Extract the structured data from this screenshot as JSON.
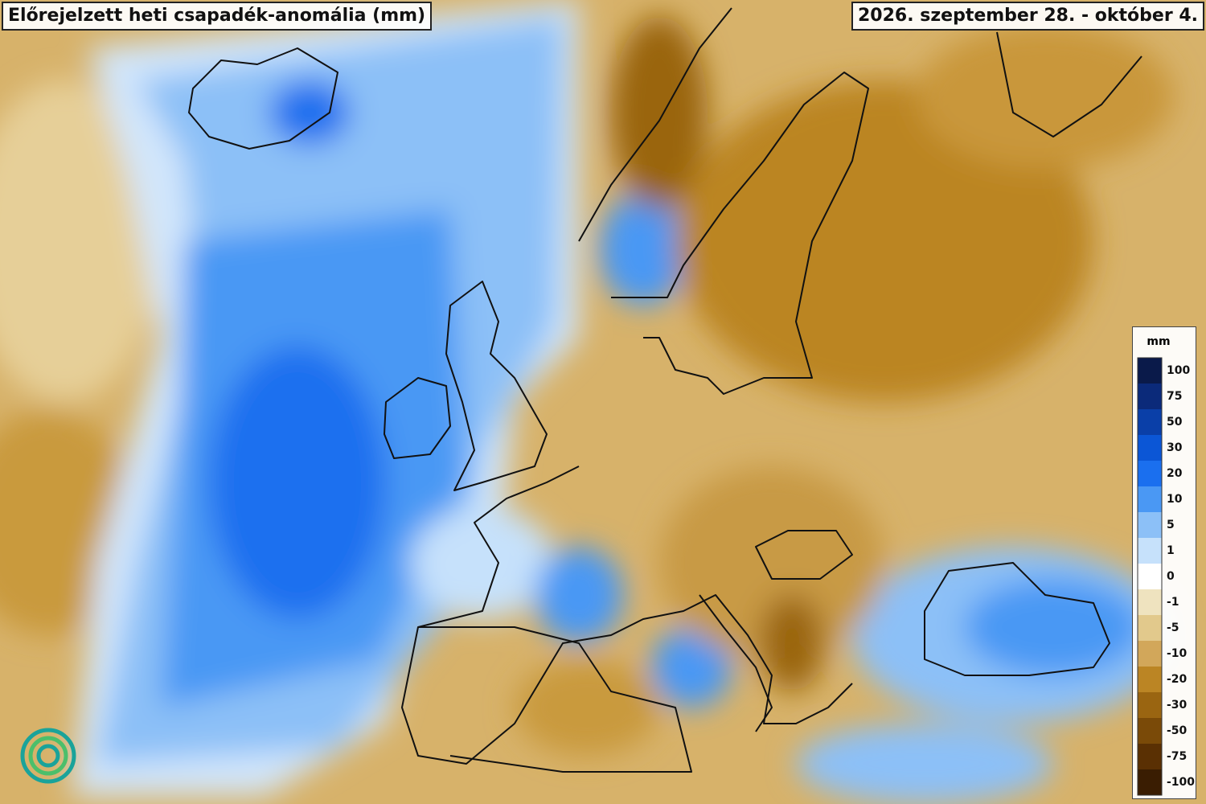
{
  "header": {
    "title": "Előrejelzett heti csapadék-anomália (mm)",
    "date": "2026. szeptember 28. - október 4."
  },
  "legend": {
    "unit": "mm",
    "ticks": [
      100,
      75,
      50,
      30,
      20,
      10,
      5,
      1,
      0,
      -1,
      -5,
      -10,
      -20,
      -30,
      -50,
      -75,
      -100
    ],
    "colors": [
      "#0a1a4a",
      "#0b2a7a",
      "#0a3fa8",
      "#0b56d6",
      "#1a6fef",
      "#4a98f4",
      "#8cc0f7",
      "#c6e1fb",
      "#ffffff",
      "#efe3bf",
      "#e2c98c",
      "#d2a75a",
      "#bb8524",
      "#9a6511",
      "#7a4a08",
      "#5a3003",
      "#3a1d02"
    ]
  }
}
